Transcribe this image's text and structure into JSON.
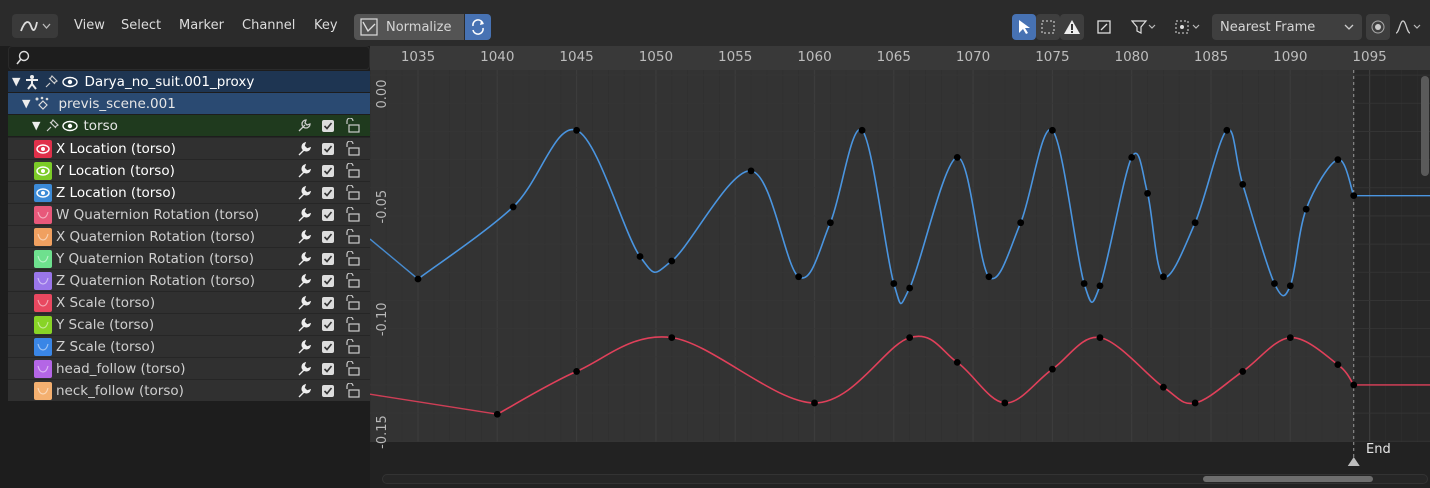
{
  "header": {
    "menus": [
      "View",
      "Select",
      "Marker",
      "Channel",
      "Key"
    ],
    "normalize_label": "Normalize",
    "snap_mode": "Nearest Frame"
  },
  "channels": {
    "search_placeholder": "",
    "object_name": "Darya_no_suit.001_proxy",
    "action_name": "previs_scene.001",
    "group_name": "torso",
    "items": [
      {
        "label": "X Location (torso)",
        "color": "#e0304a",
        "icon": "eye-icon"
      },
      {
        "label": "Y Location (torso)",
        "color": "#7ccc28",
        "icon": "eye-icon"
      },
      {
        "label": "Z Location (torso)",
        "color": "#3c8ad6",
        "icon": "eye-icon"
      },
      {
        "label": "W Quaternion Rotation (torso)",
        "color": "#e8587a",
        "icon": "curve-icon"
      },
      {
        "label": "X Quaternion Rotation (torso)",
        "color": "#f0a060",
        "icon": "curve-icon"
      },
      {
        "label": "Y Quaternion Rotation (torso)",
        "color": "#6ee08e",
        "icon": "curve-icon"
      },
      {
        "label": "Z Quaternion Rotation (torso)",
        "color": "#9a76ea",
        "icon": "curve-icon"
      },
      {
        "label": "X Scale (torso)",
        "color": "#e84860",
        "icon": "curve-icon"
      },
      {
        "label": "Y Scale (torso)",
        "color": "#88d426",
        "icon": "curve-icon"
      },
      {
        "label": "Z Scale (torso)",
        "color": "#3a86e6",
        "icon": "curve-icon"
      },
      {
        "label": "head_follow (torso)",
        "color": "#b466e6",
        "icon": "curve-icon"
      },
      {
        "label": "neck_follow (torso)",
        "color": "#f4b070",
        "icon": "curve-icon"
      }
    ]
  },
  "graph": {
    "frame_ticks": [
      "1035",
      "1040",
      "1045",
      "1050",
      "1055",
      "1060",
      "1065",
      "1070",
      "1075",
      "1080",
      "1085",
      "1090",
      "1095"
    ],
    "value_ticks": [
      "0.00",
      "-0.05",
      "-0.10",
      "-0.15"
    ],
    "end_label": "End",
    "end_frame": 1094,
    "colors": {
      "blue_curve": "#4a95e0",
      "red_curve": "#e0405a",
      "bg": "#303030",
      "grid": "#3a3a3a",
      "active_range_bg": "#333333"
    }
  },
  "chart_data": {
    "type": "line",
    "xlim": [
      1032,
      1097.5
    ],
    "ylim": [
      -0.165,
      0.005
    ],
    "series": [
      {
        "color": "#4a95e0",
        "keys": [
          [
            1035,
            -0.083
          ],
          [
            1041,
            -0.051
          ],
          [
            1045,
            -0.017
          ],
          [
            1049,
            -0.073
          ],
          [
            1051,
            -0.075
          ],
          [
            1056,
            -0.035
          ],
          [
            1059,
            -0.082
          ],
          [
            1061,
            -0.058
          ],
          [
            1063,
            -0.017
          ],
          [
            1065,
            -0.085
          ],
          [
            1066,
            -0.087
          ],
          [
            1069,
            -0.029
          ],
          [
            1071,
            -0.082
          ],
          [
            1073,
            -0.058
          ],
          [
            1075,
            -0.017
          ],
          [
            1077,
            -0.085
          ],
          [
            1078,
            -0.086
          ],
          [
            1080,
            -0.029
          ],
          [
            1081,
            -0.045
          ],
          [
            1082,
            -0.082
          ],
          [
            1084,
            -0.058
          ],
          [
            1086,
            -0.017
          ],
          [
            1087,
            -0.041
          ],
          [
            1089,
            -0.085
          ],
          [
            1090,
            -0.086
          ],
          [
            1091,
            -0.052
          ],
          [
            1093,
            -0.03
          ],
          [
            1094,
            -0.046
          ]
        ]
      },
      {
        "color": "#e0405a",
        "keys": [
          [
            1040,
            -0.143
          ],
          [
            1045,
            -0.124
          ],
          [
            1051,
            -0.109
          ],
          [
            1060,
            -0.138
          ],
          [
            1066,
            -0.109
          ],
          [
            1069,
            -0.12
          ],
          [
            1072,
            -0.138
          ],
          [
            1075,
            -0.123
          ],
          [
            1078,
            -0.109
          ],
          [
            1082,
            -0.131
          ],
          [
            1084,
            -0.138
          ],
          [
            1087,
            -0.124
          ],
          [
            1090,
            -0.109
          ],
          [
            1093,
            -0.121
          ],
          [
            1094,
            -0.13
          ]
        ]
      }
    ]
  }
}
